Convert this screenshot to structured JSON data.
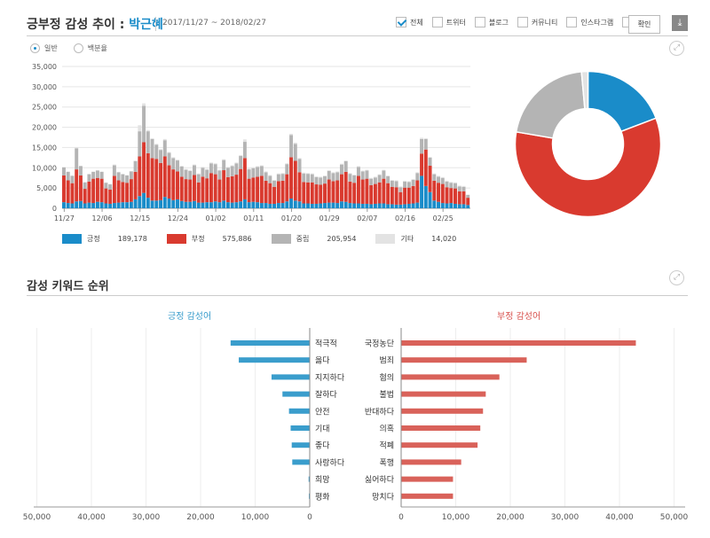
{
  "header": {
    "title_prefix": "긍부정 감성 추이 : ",
    "person": "박근혜",
    "date_range": "2017/11/27 ~ 2018/02/27",
    "filters": [
      {
        "label": "전체",
        "checked": true
      },
      {
        "label": "트위터",
        "checked": false
      },
      {
        "label": "블로그",
        "checked": false
      },
      {
        "label": "커뮤니티",
        "checked": false
      },
      {
        "label": "인스타그램",
        "checked": false
      },
      {
        "label": "뉴스",
        "checked": false
      }
    ],
    "confirm_label": "확인"
  },
  "mode": {
    "option1": "일반",
    "option2": "백분율",
    "selected": "일반"
  },
  "legend": [
    {
      "label": "긍정",
      "value": "189,178",
      "color": "#1a8cc9"
    },
    {
      "label": "부정",
      "value": "575,886",
      "color": "#d93a2f"
    },
    {
      "label": "중립",
      "value": "205,954",
      "color": "#b4b4b4"
    },
    {
      "label": "기타",
      "value": "14,020",
      "color": "#e3e3e3"
    }
  ],
  "keyword_section": {
    "title": "감성 키워드 순위",
    "positive_header": "긍정 감성어",
    "negative_header": "부정 감성어"
  },
  "chart_data": [
    {
      "type": "bar",
      "stacked": true,
      "ylim": [
        0,
        35000
      ],
      "yticks": [
        "0",
        "5,000",
        "10,000",
        "15,000",
        "20,000",
        "25,000",
        "30,000",
        "35,000"
      ],
      "xticks": [
        "11/27",
        "12/06",
        "12/15",
        "12/24",
        "01/02",
        "01/11",
        "01/20",
        "01/29",
        "02/07",
        "02/16",
        "02/25"
      ],
      "series": [
        {
          "name": "긍정",
          "color": "#1a8cc9",
          "values": [
            1500,
            1300,
            1200,
            1700,
            1800,
            1200,
            1400,
            1300,
            1600,
            1500,
            1200,
            1100,
            1300,
            1400,
            1500,
            1500,
            1600,
            2200,
            3000,
            3800,
            2600,
            1900,
            1900,
            2000,
            2800,
            2400,
            2000,
            2200,
            1800,
            1600,
            1600,
            1800,
            1400,
            1400,
            1500,
            1500,
            1700,
            1500,
            1900,
            1500,
            1400,
            1500,
            1700,
            2200,
            1500,
            1600,
            1500,
            1300,
            1300,
            1100,
            1100,
            1300,
            1300,
            1700,
            2400,
            1900,
            1700,
            1200,
            1200,
            1100,
            1100,
            1200,
            1300,
            1400,
            1400,
            1300,
            1700,
            1600,
            1300,
            1200,
            1200,
            1100,
            1100,
            1000,
            1100,
            1200,
            1200,
            1000,
            1000,
            900,
            900,
            1000,
            1100,
            1200,
            1400,
            8000,
            5500,
            4000,
            1900,
            1600,
            1300,
            1200,
            1300,
            1100,
            1000,
            1000,
            800
          ]
        },
        {
          "name": "부정",
          "color": "#d93a2f",
          "values": [
            6600,
            5600,
            5000,
            7900,
            6300,
            3600,
            5200,
            6000,
            5900,
            5800,
            3700,
            3500,
            6700,
            5500,
            5000,
            4800,
            5600,
            6800,
            9800,
            12500,
            11000,
            10500,
            10300,
            9200,
            10000,
            8200,
            7600,
            6900,
            6000,
            5600,
            5500,
            6400,
            5000,
            6400,
            5900,
            7200,
            6700,
            5600,
            7500,
            6200,
            6500,
            6800,
            8000,
            10200,
            5800,
            6000,
            6300,
            6700,
            5500,
            5100,
            4200,
            5400,
            5500,
            6700,
            10200,
            9800,
            7200,
            5300,
            5200,
            5300,
            4800,
            4600,
            4800,
            5700,
            5300,
            5600,
            6700,
            7400,
            5300,
            5100,
            6800,
            6000,
            6200,
            4700,
            4900,
            5200,
            6100,
            5200,
            4300,
            4300,
            3100,
            4100,
            4000,
            4300,
            5500,
            5500,
            9000,
            6500,
            4900,
            4700,
            4700,
            4000,
            3700,
            3800,
            3200,
            3200,
            1800
          ]
        },
        {
          "name": "중립",
          "color": "#b4b4b4",
          "values": [
            2000,
            2100,
            1800,
            5200,
            2300,
            1600,
            1800,
            1700,
            1800,
            1700,
            1400,
            1300,
            2600,
            2000,
            1900,
            1800,
            1900,
            2600,
            6200,
            9000,
            5400,
            4700,
            3500,
            3200,
            4000,
            3100,
            2800,
            2700,
            2500,
            2300,
            2100,
            2400,
            2000,
            2200,
            2100,
            2400,
            2500,
            2200,
            2500,
            2300,
            2500,
            2800,
            3200,
            4000,
            2300,
            2300,
            2400,
            2400,
            2100,
            1800,
            1500,
            1700,
            1700,
            2500,
            5500,
            4200,
            3300,
            2100,
            2100,
            2000,
            1800,
            1800,
            1800,
            2100,
            2000,
            2000,
            2400,
            2600,
            1900,
            1800,
            2200,
            2000,
            2000,
            1600,
            1600,
            1800,
            2000,
            1700,
            1500,
            1500,
            1200,
            1500,
            1400,
            1500,
            1800,
            3600,
            2600,
            2000,
            1600,
            1500,
            1500,
            1400,
            1300,
            1300,
            1200,
            1100,
            700
          ]
        },
        {
          "name": "기타",
          "color": "#e3e3e3",
          "values": [
            100,
            100,
            100,
            300,
            100,
            100,
            100,
            100,
            100,
            100,
            100,
            100,
            200,
            100,
            100,
            100,
            100,
            200,
            1500,
            600,
            300,
            200,
            200,
            200,
            300,
            200,
            200,
            200,
            200,
            200,
            200,
            200,
            200,
            200,
            200,
            200,
            200,
            200,
            200,
            200,
            200,
            200,
            200,
            600,
            200,
            200,
            200,
            200,
            200,
            200,
            200,
            200,
            200,
            200,
            300,
            300,
            200,
            200,
            200,
            200,
            200,
            200,
            200,
            200,
            200,
            200,
            200,
            200,
            200,
            200,
            200,
            200,
            200,
            200,
            200,
            200,
            200,
            200,
            200,
            200,
            200,
            200,
            200,
            200,
            200,
            300,
            200,
            200,
            200,
            200,
            200,
            200,
            200,
            200,
            200,
            200,
            100
          ]
        }
      ]
    },
    {
      "type": "pie",
      "donut": true,
      "slices": [
        {
          "label": "긍정",
          "value": 189178,
          "color": "#1a8cc9"
        },
        {
          "label": "부정",
          "value": 575886,
          "color": "#d93a2f"
        },
        {
          "label": "중립",
          "value": 205954,
          "color": "#b4b4b4"
        },
        {
          "label": "기타",
          "value": 14020,
          "color": "#e3e3e3"
        }
      ]
    },
    {
      "type": "bar",
      "orientation": "horizontal",
      "series_name": "긍정 감성어",
      "color": "#3a9dcc",
      "xlim": [
        0,
        50000
      ],
      "xticks": [
        "50,000",
        "40,000",
        "30,000",
        "20,000",
        "10,000",
        "0"
      ],
      "categories": [
        "적극적",
        "옳다",
        "지지하다",
        "잘하다",
        "안전",
        "기대",
        "좋다",
        "사랑하다",
        "희망",
        "평화"
      ],
      "values": [
        14500,
        13000,
        7000,
        5000,
        3800,
        3500,
        3300,
        3200,
        200,
        150
      ]
    },
    {
      "type": "bar",
      "orientation": "horizontal",
      "series_name": "부정 감성어",
      "color": "#d9625a",
      "xlim": [
        0,
        50000
      ],
      "xticks": [
        "0",
        "10,000",
        "20,000",
        "30,000",
        "40,000",
        "50,000"
      ],
      "categories": [
        "국정농단",
        "범죄",
        "혐의",
        "불법",
        "반대하다",
        "의혹",
        "적폐",
        "폭행",
        "싫어하다",
        "망치다"
      ],
      "values": [
        43000,
        23000,
        18000,
        15500,
        15000,
        14500,
        14000,
        11000,
        9500,
        9500
      ]
    }
  ]
}
